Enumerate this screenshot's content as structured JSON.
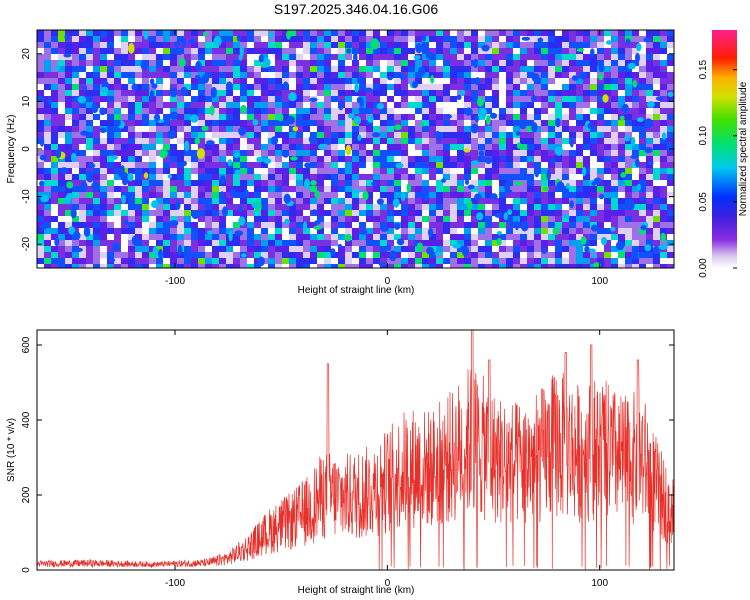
{
  "title": "S197.2025.346.04.16.G06",
  "chart_data": [
    {
      "type": "heatmap",
      "xlabel": "Height of straight line (km)",
      "ylabel": "Frequency (Hz)",
      "xlim": [
        -165,
        135
      ],
      "ylim": [
        -25,
        25
      ],
      "x_ticks": [
        -100,
        0,
        100
      ],
      "y_ticks": [
        -20,
        -10,
        0,
        10,
        20
      ],
      "colorbar": {
        "label": "Normalized spectral amplitude",
        "range": [
          0.0,
          0.18
        ],
        "ticks": [
          0.0,
          0.05,
          0.1,
          0.15
        ],
        "tick_labels": [
          "0.00",
          "0.05",
          "0.10",
          "0.15"
        ],
        "colormap": "rainbow (white-violet-blue-cyan-green-yellow-red-magenta)"
      }
    },
    {
      "type": "line",
      "xlabel": "Height of straight line (km)",
      "ylabel": "SNR (10 * v/v)",
      "xlim": [
        -165,
        135
      ],
      "ylim": [
        0,
        640
      ],
      "x_ticks": [
        -100,
        0,
        100
      ],
      "y_ticks": [
        0,
        200,
        400,
        600
      ],
      "line_color": "#e8302a",
      "envelope": [
        {
          "x": -165,
          "y": 25
        },
        {
          "x": -140,
          "y": 28
        },
        {
          "x": -110,
          "y": 22
        },
        {
          "x": -85,
          "y": 30
        },
        {
          "x": -75,
          "y": 50
        },
        {
          "x": -65,
          "y": 100
        },
        {
          "x": -55,
          "y": 170
        },
        {
          "x": -45,
          "y": 210
        },
        {
          "x": -38,
          "y": 250
        },
        {
          "x": -30,
          "y": 320
        },
        {
          "x": -20,
          "y": 310
        },
        {
          "x": -10,
          "y": 330
        },
        {
          "x": 0,
          "y": 380
        },
        {
          "x": 10,
          "y": 440
        },
        {
          "x": 20,
          "y": 430
        },
        {
          "x": 30,
          "y": 480
        },
        {
          "x": 40,
          "y": 560
        },
        {
          "x": 50,
          "y": 480
        },
        {
          "x": 60,
          "y": 450
        },
        {
          "x": 70,
          "y": 470
        },
        {
          "x": 80,
          "y": 540
        },
        {
          "x": 90,
          "y": 500
        },
        {
          "x": 100,
          "y": 520
        },
        {
          "x": 110,
          "y": 470
        },
        {
          "x": 120,
          "y": 480
        },
        {
          "x": 128,
          "y": 330
        },
        {
          "x": 135,
          "y": 250
        }
      ],
      "peaks": [
        {
          "x": -28,
          "y": 550
        },
        {
          "x": 40,
          "y": 640
        },
        {
          "x": 48,
          "y": 560
        },
        {
          "x": 84,
          "y": 580
        },
        {
          "x": 96,
          "y": 600
        },
        {
          "x": 118,
          "y": 560
        }
      ]
    }
  ],
  "colors": {
    "line": "#e8302a",
    "axis": "#000000",
    "background": "#ffffff"
  }
}
